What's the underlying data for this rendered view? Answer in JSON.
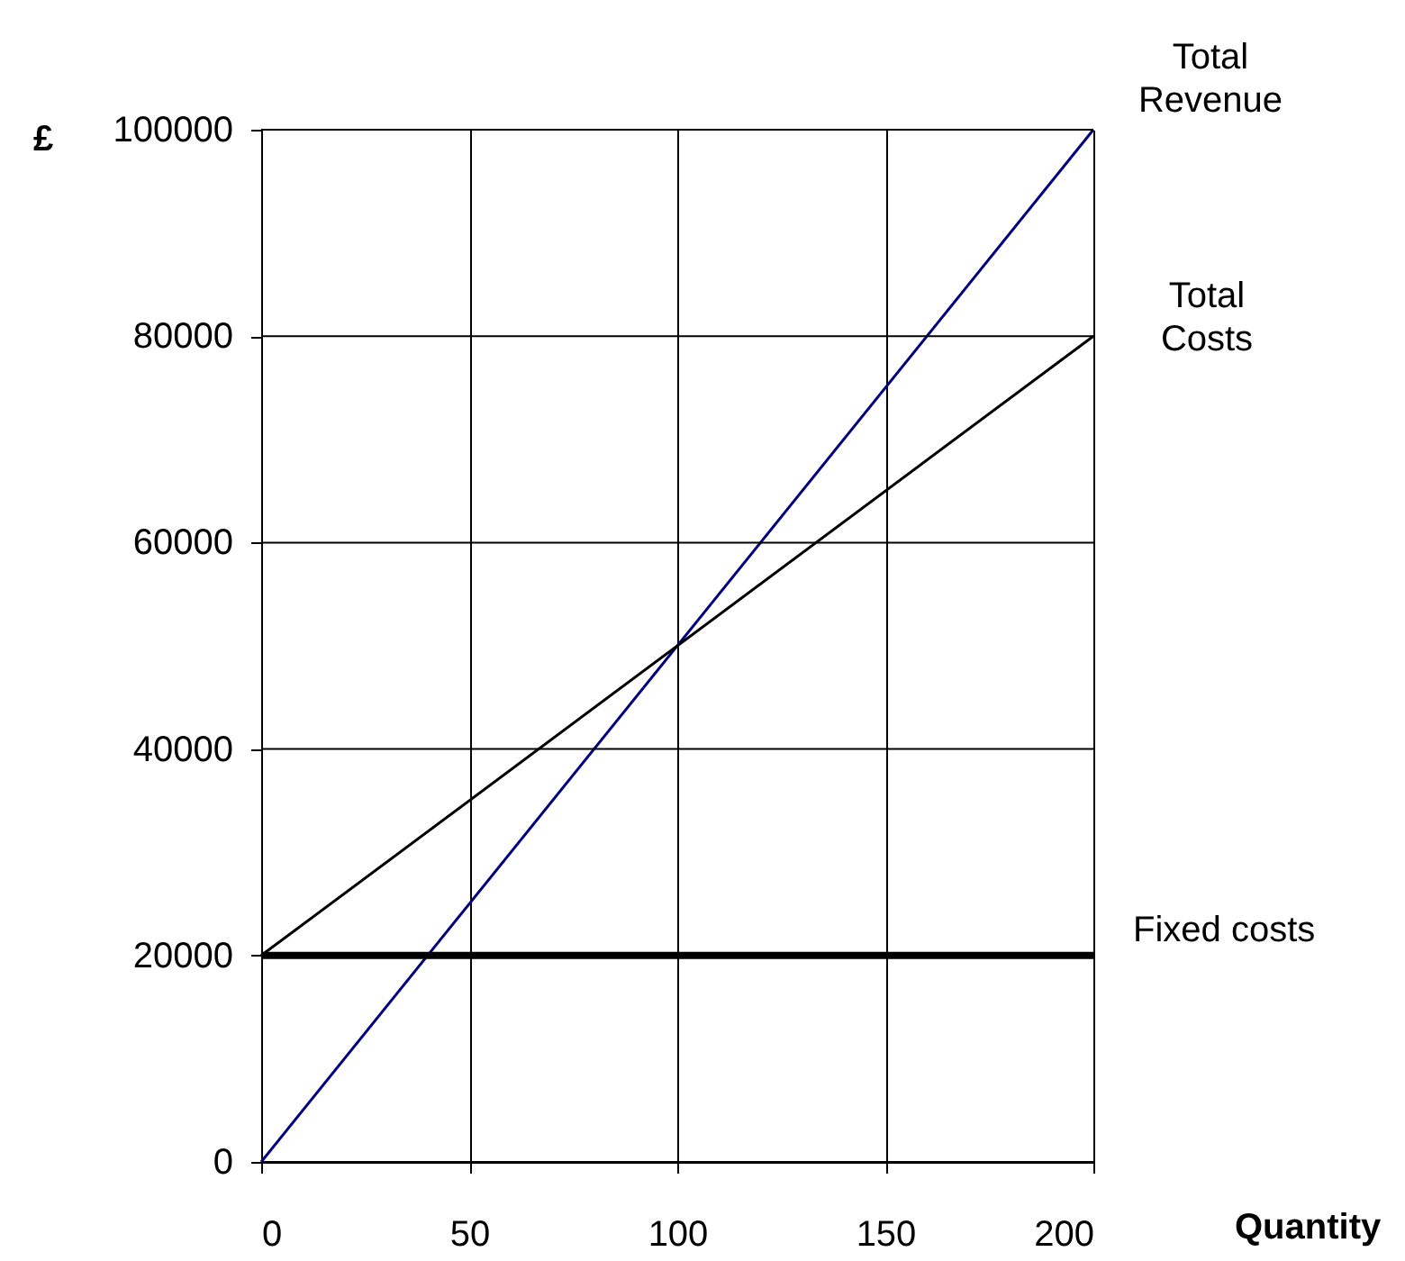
{
  "chart_data": {
    "type": "line",
    "xlabel": "Quantity",
    "ylabel": "£",
    "x": [
      0,
      200
    ],
    "series": [
      {
        "name": "Total\nRevenue",
        "color": "#000080",
        "values": [
          0,
          100000
        ]
      },
      {
        "name": "Total\nCosts",
        "color": "#000000",
        "values": [
          20000,
          80000
        ]
      },
      {
        "name": "Fixed costs",
        "color": "#000000",
        "values": [
          20000,
          20000
        ]
      }
    ],
    "xlim": [
      0,
      200
    ],
    "xticks": [
      0,
      50,
      100,
      150,
      200
    ],
    "ylim": [
      0,
      100000
    ],
    "yticks": [
      0,
      20000,
      40000,
      60000,
      80000,
      100000
    ],
    "grid": true,
    "legend": false,
    "line_style": "solid",
    "marker": "none"
  }
}
